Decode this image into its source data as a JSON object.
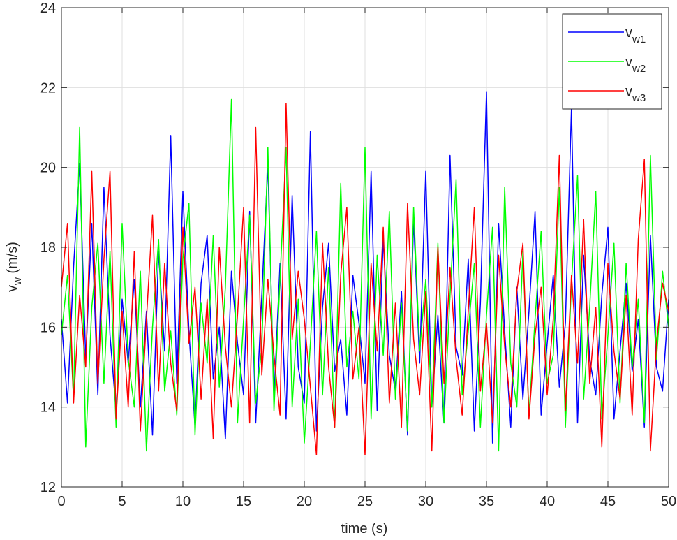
{
  "chart_data": {
    "type": "line",
    "title": "",
    "xlabel": "time (s)",
    "ylabel": "v",
    "ylabel_sub": "w",
    "ylabel_unit": " (m/s)",
    "xlim": [
      0,
      50
    ],
    "ylim": [
      12,
      24
    ],
    "xticks": [
      0,
      5,
      10,
      15,
      20,
      25,
      30,
      35,
      40,
      45,
      50
    ],
    "yticks": [
      12,
      14,
      16,
      18,
      20,
      22,
      24
    ],
    "grid": true,
    "legend_position": "top-right",
    "series": [
      {
        "name": "v",
        "name_sub": "w1",
        "color": "#0000ff",
        "x": [
          0,
          0.5,
          1,
          1.5,
          2,
          2.5,
          3,
          3.5,
          4,
          4.5,
          5,
          5.5,
          6,
          6.5,
          7,
          7.5,
          8,
          8.5,
          9,
          9.5,
          10,
          10.5,
          11,
          11.5,
          12,
          12.5,
          13,
          13.5,
          14,
          14.5,
          15,
          15.5,
          16,
          16.5,
          17,
          17.5,
          18,
          18.5,
          19,
          19.5,
          20,
          20.5,
          21,
          21.5,
          22,
          22.5,
          23,
          23.5,
          24,
          24.5,
          25,
          25.5,
          26,
          26.5,
          27,
          27.5,
          28,
          28.5,
          29,
          29.5,
          30,
          30.5,
          31,
          31.5,
          32,
          32.5,
          33,
          33.5,
          34,
          34.5,
          35,
          35.5,
          36,
          36.5,
          37,
          37.5,
          38,
          38.5,
          39,
          39.5,
          40,
          40.5,
          41,
          41.5,
          42,
          42.5,
          43,
          43.5,
          44,
          44.5,
          45,
          45.5,
          46,
          46.5,
          47,
          47.5,
          48,
          48.5,
          49,
          49.5,
          50
        ],
        "values": [
          16.2,
          14.1,
          17.5,
          20.1,
          15.2,
          18.6,
          14.3,
          19.5,
          15.8,
          13.9,
          16.7,
          15.1,
          17.2,
          14.0,
          16.4,
          13.3,
          17.9,
          15.4,
          20.8,
          14.6,
          19.4,
          15.9,
          13.5,
          17.1,
          18.3,
          14.7,
          16.0,
          13.2,
          17.4,
          15.6,
          14.3,
          18.9,
          13.6,
          16.8,
          20.1,
          14.2,
          17.6,
          13.7,
          19.3,
          15.0,
          14.1,
          20.9,
          13.4,
          16.5,
          18.1,
          14.9,
          15.7,
          13.8,
          17.3,
          16.1,
          14.6,
          19.9,
          13.9,
          18.2,
          15.3,
          14.4,
          16.9,
          13.3,
          18.7,
          15.1,
          19.9,
          14.0,
          16.3,
          13.6,
          20.3,
          15.5,
          14.8,
          17.7,
          13.4,
          16.6,
          21.9,
          13.1,
          18.6,
          15.9,
          13.5,
          17.0,
          14.2,
          16.4,
          18.9,
          13.8,
          15.6,
          17.3,
          14.5,
          16.1,
          21.5,
          13.6,
          17.8,
          15.2,
          14.3,
          16.8,
          18.5,
          13.7,
          15.4,
          17.1,
          14.9,
          16.2,
          13.5,
          18.3,
          15.0,
          14.4,
          16.7
        ]
      },
      {
        "name": "v",
        "name_sub": "w2",
        "color": "#00ff00",
        "x": [
          0,
          0.5,
          1,
          1.5,
          2,
          2.5,
          3,
          3.5,
          4,
          4.5,
          5,
          5.5,
          6,
          6.5,
          7,
          7.5,
          8,
          8.5,
          9,
          9.5,
          10,
          10.5,
          11,
          11.5,
          12,
          12.5,
          13,
          13.5,
          14,
          14.5,
          15,
          15.5,
          16,
          16.5,
          17,
          17.5,
          18,
          18.5,
          19,
          19.5,
          20,
          20.5,
          21,
          21.5,
          22,
          22.5,
          23,
          23.5,
          24,
          24.5,
          25,
          25.5,
          26,
          26.5,
          27,
          27.5,
          28,
          28.5,
          29,
          29.5,
          30,
          30.5,
          31,
          31.5,
          32,
          32.5,
          33,
          33.5,
          34,
          34.5,
          35,
          35.5,
          36,
          36.5,
          37,
          37.5,
          38,
          38.5,
          39,
          39.5,
          40,
          40.5,
          41,
          41.5,
          42,
          42.5,
          43,
          43.5,
          44,
          44.5,
          45,
          45.5,
          46,
          46.5,
          47,
          47.5,
          48,
          48.5,
          49,
          49.5,
          50
        ],
        "values": [
          15.8,
          17.3,
          14.2,
          21.0,
          13.0,
          16.5,
          18.1,
          14.6,
          17.9,
          13.5,
          18.6,
          15.2,
          14.0,
          17.4,
          12.9,
          16.0,
          18.2,
          14.4,
          15.9,
          13.8,
          17.7,
          19.1,
          13.3,
          16.6,
          15.1,
          18.3,
          14.5,
          17.0,
          21.7,
          13.6,
          16.2,
          18.8,
          14.1,
          15.5,
          20.5,
          13.9,
          17.2,
          20.5,
          14.0,
          16.7,
          13.1,
          15.6,
          18.4,
          14.3,
          17.5,
          13.5,
          19.6,
          15.0,
          16.4,
          14.7,
          20.5,
          13.7,
          17.8,
          15.3,
          18.9,
          14.2,
          16.6,
          13.4,
          19.0,
          15.4,
          17.2,
          14.0,
          18.1,
          13.6,
          16.8,
          19.7,
          14.3,
          15.9,
          17.6,
          13.5,
          16.3,
          18.5,
          12.9,
          19.5,
          15.1,
          14.0,
          17.9,
          13.8,
          16.2,
          18.4,
          14.6,
          15.3,
          19.5,
          13.5,
          17.1,
          19.8,
          14.2,
          16.5,
          19.4,
          13.7,
          15.8,
          18.1,
          14.1,
          17.6,
          15.0,
          16.7,
          13.6,
          20.3,
          15.2,
          17.4,
          16.0
        ]
      },
      {
        "name": "v",
        "name_sub": "w3",
        "color": "#ff0000",
        "x": [
          0,
          0.5,
          1,
          1.5,
          2,
          2.5,
          3,
          3.5,
          4,
          4.5,
          5,
          5.5,
          6,
          6.5,
          7,
          7.5,
          8,
          8.5,
          9,
          9.5,
          10,
          10.5,
          11,
          11.5,
          12,
          12.5,
          13,
          13.5,
          14,
          14.5,
          15,
          15.5,
          16,
          16.5,
          17,
          17.5,
          18,
          18.5,
          19,
          19.5,
          20,
          20.5,
          21,
          21.5,
          22,
          22.5,
          23,
          23.5,
          24,
          24.5,
          25,
          25.5,
          26,
          26.5,
          27,
          27.5,
          28,
          28.5,
          29,
          29.5,
          30,
          30.5,
          31,
          31.5,
          32,
          32.5,
          33,
          33.5,
          34,
          34.5,
          35,
          35.5,
          36,
          36.5,
          37,
          37.5,
          38,
          38.5,
          39,
          39.5,
          40,
          40.5,
          41,
          41.5,
          42,
          42.5,
          43,
          43.5,
          44,
          44.5,
          45,
          45.5,
          46,
          46.5,
          47,
          47.5,
          48,
          48.5,
          49,
          49.5,
          50
        ],
        "values": [
          17.0,
          18.6,
          14.1,
          16.8,
          15.0,
          19.9,
          14.6,
          17.7,
          19.9,
          13.7,
          16.4,
          14.0,
          17.9,
          13.4,
          16.2,
          18.8,
          14.4,
          17.6,
          15.1,
          13.9,
          18.5,
          15.6,
          17.0,
          14.2,
          16.7,
          13.2,
          18.0,
          15.5,
          14.0,
          16.3,
          19.0,
          13.6,
          21.0,
          14.8,
          17.2,
          15.3,
          13.8,
          21.6,
          15.7,
          17.4,
          16.2,
          14.5,
          12.8,
          18.1,
          15.0,
          13.5,
          17.3,
          19.0,
          14.7,
          16.0,
          12.8,
          17.6,
          15.4,
          18.5,
          14.1,
          16.6,
          13.5,
          19.1,
          15.7,
          14.3,
          16.9,
          12.9,
          18.0,
          14.6,
          17.5,
          15.2,
          13.8,
          16.4,
          19.0,
          14.4,
          16.1,
          13.6,
          17.8,
          15.5,
          14.0,
          16.9,
          18.1,
          13.7,
          15.8,
          17.0,
          14.3,
          16.2,
          20.3,
          13.9,
          17.3,
          15.1,
          18.7,
          14.6,
          16.5,
          13.0,
          17.6,
          15.4,
          14.2,
          16.8,
          13.8,
          18.2,
          20.2,
          12.9,
          15.6,
          17.1,
          16.4
        ]
      }
    ]
  }
}
